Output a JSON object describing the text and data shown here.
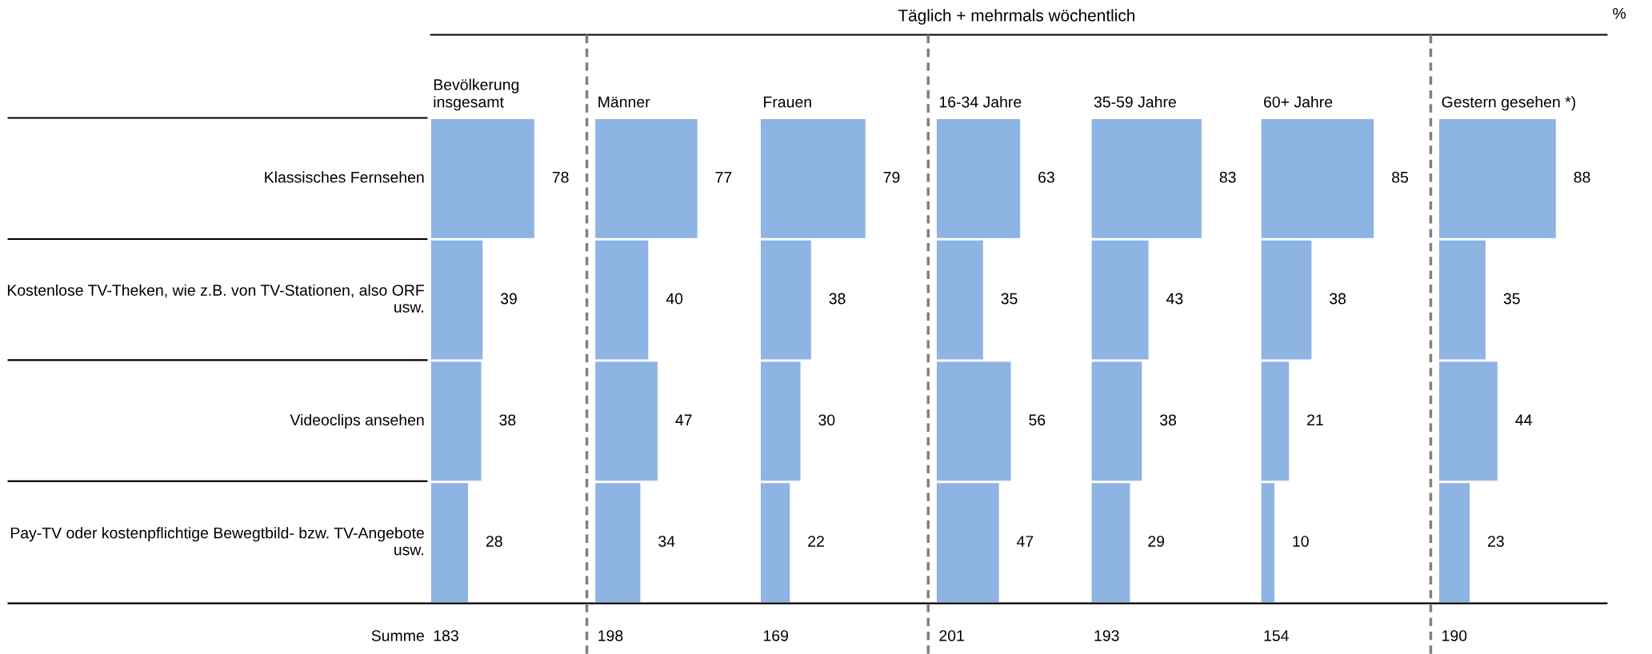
{
  "chart_data": [
    {
      "type": "bar",
      "orientation": "horizontal",
      "title": "Bevölkerung\ninsgesamt",
      "categories": [
        "Klassisches Fernsehen",
        "Kostenlose TV-Theken, wie z.B. von TV-Stationen, also ORF usw.",
        "Videoclips ansehen",
        "Pay-TV oder kostenpflichtige Bewegtbild- bzw. TV-Angebote usw."
      ],
      "values": [
        78,
        39,
        38,
        28
      ],
      "color": "#8eb4e3",
      "data_labels": true,
      "tick_labels": "y",
      "annotations": [
        "Täglich + mehrmals wöchentlich",
        "%",
        "Summe",
        "183"
      ]
    },
    {
      "type": "bar",
      "orientation": "horizontal",
      "title": "Männer",
      "categories": [
        null,
        null,
        null,
        null
      ],
      "values": [
        77,
        40,
        47,
        34
      ],
      "color": "#8eb4e3",
      "data_labels": true,
      "tick_labels": false,
      "annotations": [
        "198"
      ]
    },
    {
      "type": "bar",
      "orientation": "horizontal",
      "title": "Frauen",
      "categories": [
        null,
        null,
        null,
        null
      ],
      "values": [
        79,
        38,
        30,
        22
      ],
      "color": "#8eb4e3",
      "data_labels": true,
      "tick_labels": false,
      "annotations": [
        "169"
      ]
    },
    {
      "type": "bar",
      "orientation": "horizontal",
      "title": "16-34 Jahre",
      "categories": [
        null,
        null,
        null,
        null
      ],
      "values": [
        63,
        35,
        56,
        47
      ],
      "color": "#8eb4e3",
      "data_labels": true,
      "tick_labels": false,
      "annotations": [
        "201"
      ]
    },
    {
      "type": "bar",
      "orientation": "horizontal",
      "title": "35-59 Jahre",
      "categories": [
        null,
        null,
        null,
        null
      ],
      "values": [
        83,
        43,
        38,
        29
      ],
      "color": "#8eb4e3",
      "data_labels": true,
      "tick_labels": false,
      "annotations": [
        "193"
      ]
    },
    {
      "type": "bar",
      "orientation": "horizontal",
      "title": "60+ Jahre",
      "categories": [
        null,
        null,
        null,
        null
      ],
      "values": [
        85,
        38,
        21,
        10
      ],
      "color": "#8eb4e3",
      "data_labels": true,
      "tick_labels": false,
      "annotations": [
        "154"
      ]
    },
    {
      "type": "bar",
      "orientation": "horizontal",
      "title": "Gestern gesehen *)",
      "categories": [
        null,
        null,
        null,
        null
      ],
      "values": [
        88,
        35,
        44,
        23
      ],
      "color": "#8eb4e3",
      "data_labels": true,
      "tick_labels": false,
      "annotations": [
        "190"
      ]
    }
  ]
}
